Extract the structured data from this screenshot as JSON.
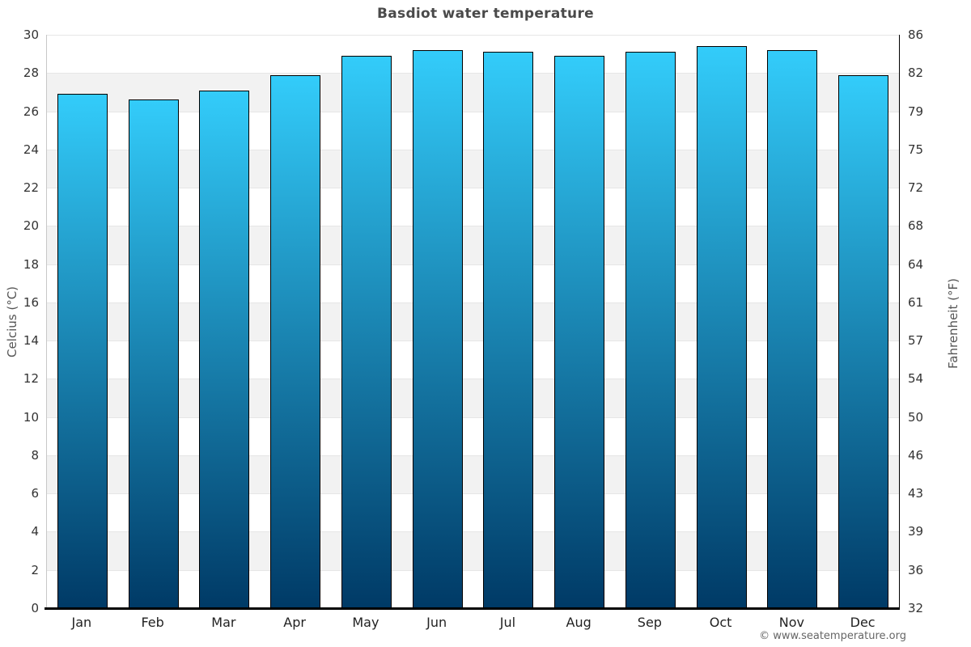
{
  "chart_data": {
    "type": "bar",
    "title": "Basdiot water temperature",
    "categories": [
      "Jan",
      "Feb",
      "Mar",
      "Apr",
      "May",
      "Jun",
      "Jul",
      "Aug",
      "Sep",
      "Oct",
      "Nov",
      "Dec"
    ],
    "values_celsius": [
      26.9,
      26.6,
      27.1,
      27.9,
      28.9,
      29.2,
      29.1,
      28.9,
      29.1,
      29.4,
      29.2,
      27.9
    ],
    "ylabel_left": "Celcius (°C)",
    "ylabel_right": "Fahrenheit (°F)",
    "ylim_celsius": [
      0,
      30
    ],
    "yticks_celsius": [
      0,
      2,
      4,
      6,
      8,
      10,
      12,
      14,
      16,
      18,
      20,
      22,
      24,
      26,
      28,
      30
    ],
    "yticks_fahrenheit": [
      32,
      36,
      39,
      43,
      46,
      50,
      54,
      57,
      61,
      64,
      68,
      72,
      75,
      79,
      82,
      86
    ],
    "legend": "none",
    "grid": "alternating horizontal bands every 2 degrees C",
    "colors": {
      "bar_gradient_top": "#33CCFA",
      "bar_gradient_bottom": "#003A66",
      "bar_border": "#000000",
      "band_gray": "#F2F2F2",
      "gridline": "#E6E6E6",
      "title_text": "#4A4A4A",
      "tick_text": "#333333",
      "axis_title_text": "#555555",
      "footer_text": "#666666"
    }
  },
  "footer": {
    "text": "© www.seatemperature.org"
  }
}
